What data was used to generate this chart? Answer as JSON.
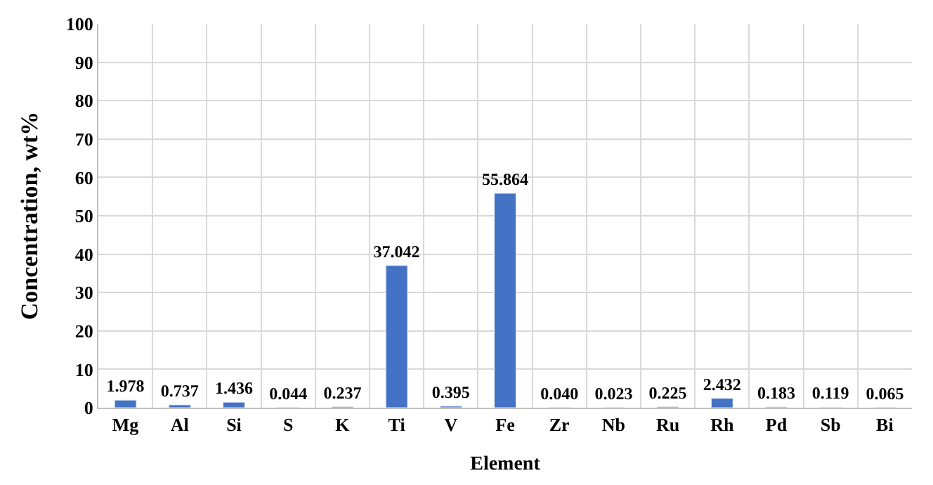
{
  "chart_data": {
    "type": "bar",
    "categories": [
      "Mg",
      "Al",
      "Si",
      "S",
      "K",
      "Ti",
      "V",
      "Fe",
      "Zr",
      "Nb",
      "Ru",
      "Rh",
      "Pd",
      "Sb",
      "Bi"
    ],
    "values": [
      1.978,
      0.737,
      1.436,
      0.044,
      0.237,
      37.042,
      0.395,
      55.864,
      0.04,
      0.023,
      0.225,
      2.432,
      0.183,
      0.119,
      0.065
    ],
    "value_labels": [
      "1.978",
      "0.737",
      "1.436",
      "0.044",
      "0.237",
      "37.042",
      "0.395",
      "55.864",
      "0.040",
      "0.023",
      "0.225",
      "2.432",
      "0.183",
      "0.119",
      "0.065"
    ],
    "color": "#4472c4",
    "xlabel": "Element",
    "ylabel": "Concentration, wt%",
    "ylim": [
      0,
      100
    ],
    "yticks": [
      0,
      10,
      20,
      30,
      40,
      50,
      60,
      70,
      80,
      90,
      100
    ],
    "grid": true
  }
}
